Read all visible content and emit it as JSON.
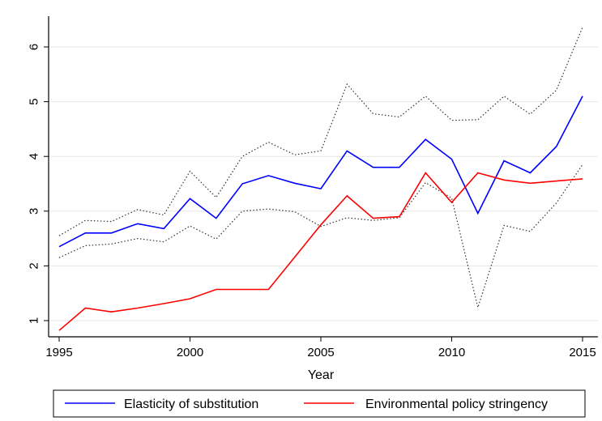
{
  "chart_data": {
    "type": "line",
    "title": "",
    "xlabel": "Year",
    "ylabel": "",
    "xlim": [
      1995,
      2015
    ],
    "ylim": [
      0.8,
      6.6
    ],
    "x_ticks": [
      1995,
      2000,
      2005,
      2010,
      2015
    ],
    "y_ticks": [
      1,
      2,
      3,
      4,
      5,
      6
    ],
    "grid": "horizontal",
    "legend_position": "bottom",
    "x": [
      1995,
      1996,
      1997,
      1998,
      1999,
      2000,
      2001,
      2002,
      2003,
      2004,
      2005,
      2006,
      2007,
      2008,
      2009,
      2010,
      2011,
      2012,
      2013,
      2014,
      2015
    ],
    "series": [
      {
        "name": "Elasticity of substitution",
        "color": "#0000ff",
        "style": "solid",
        "values": [
          2.35,
          2.6,
          2.6,
          2.77,
          2.68,
          3.23,
          2.87,
          3.5,
          3.65,
          3.51,
          3.41,
          4.1,
          3.8,
          3.8,
          4.31,
          3.95,
          2.96,
          3.92,
          3.7,
          4.18,
          5.1
        ]
      },
      {
        "name": "Environmental policy stringency",
        "color": "#ff0000",
        "style": "solid",
        "values": [
          0.82,
          1.23,
          1.16,
          1.23,
          1.31,
          1.4,
          1.57,
          1.57,
          1.57,
          2.16,
          2.75,
          3.28,
          2.87,
          2.9,
          3.7,
          3.16,
          3.7,
          3.57,
          3.51,
          3.55,
          3.59
        ]
      },
      {
        "name": "",
        "color": "#333333",
        "style": "dotted",
        "values": [
          2.55,
          2.83,
          2.81,
          3.03,
          2.93,
          3.73,
          3.25,
          4.0,
          4.26,
          4.03,
          4.1,
          5.32,
          4.78,
          4.72,
          5.1,
          4.66,
          4.67,
          5.1,
          4.77,
          5.21,
          6.36
        ]
      },
      {
        "name": "",
        "color": "#333333",
        "style": "dotted",
        "values": [
          2.15,
          2.37,
          2.4,
          2.5,
          2.44,
          2.73,
          2.49,
          3.0,
          3.04,
          2.99,
          2.72,
          2.88,
          2.83,
          2.88,
          3.52,
          3.24,
          1.24,
          2.74,
          2.63,
          3.15,
          3.85
        ]
      }
    ]
  }
}
